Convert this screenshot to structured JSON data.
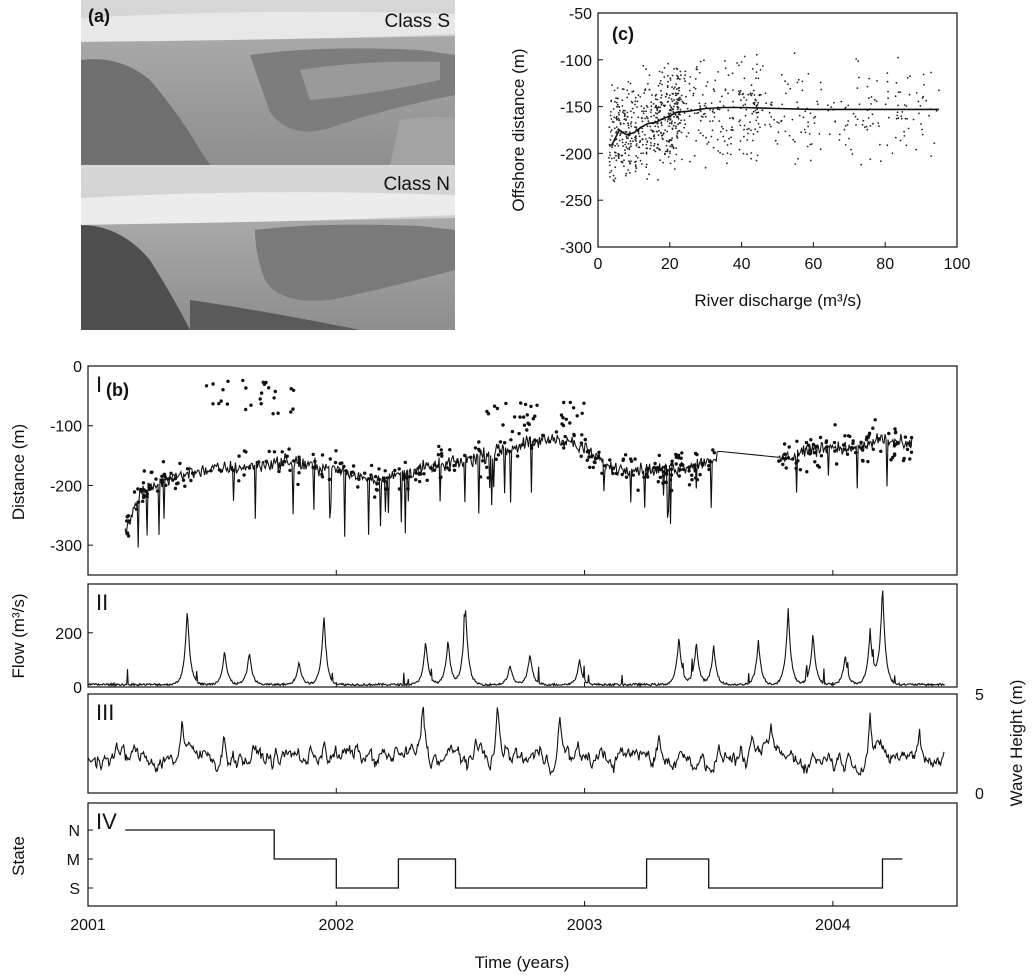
{
  "panel_a": {
    "label": "(a)",
    "photos": [
      {
        "class_label": "Class S"
      },
      {
        "class_label": "Class N"
      }
    ]
  },
  "chart_data": [
    {
      "id": "c",
      "type": "scatter",
      "panel_label": "(c)",
      "xlabel": "River discharge (m³/s)",
      "ylabel": "Offshore distance (m)",
      "xlim": [
        0,
        100
      ],
      "ylim": [
        -300,
        -50
      ],
      "xticks": [
        0,
        20,
        40,
        60,
        80,
        100
      ],
      "yticks": [
        -50,
        -100,
        -150,
        -200,
        -250,
        -300
      ],
      "trend_line": {
        "x": [
          4,
          5,
          6,
          7,
          8,
          10,
          12,
          14,
          16,
          18,
          20,
          22,
          25,
          30,
          35,
          40,
          50,
          60,
          70,
          80,
          90,
          95
        ],
        "y": [
          -190,
          -182,
          -175,
          -178,
          -180,
          -178,
          -172,
          -168,
          -167,
          -163,
          -160,
          -156,
          -155,
          -152,
          -151,
          -151,
          -152,
          -153,
          -153,
          -153,
          -153,
          -153
        ]
      }
    },
    {
      "id": "b",
      "type": "line",
      "panel_label": "(b)",
      "xlabel": "Time (years)",
      "xlim": [
        2001,
        2004.5
      ],
      "xticks": [
        2001,
        2002,
        2003,
        2004
      ],
      "panels": [
        {
          "label": "I",
          "ylabel": "Distance (m)",
          "ylim": [
            -350,
            0
          ],
          "yticks": [
            0,
            -100,
            -200,
            -300
          ],
          "anchor_x": [
            2001.15,
            2001.2,
            2001.3,
            2001.45,
            2001.6,
            2001.7,
            2001.8,
            2001.95,
            2002.1,
            2002.2,
            2002.3,
            2002.45,
            2002.6,
            2002.75,
            2002.9,
            2003.0,
            2003.1,
            2003.3,
            2003.45,
            2003.55,
            2003.8,
            2003.9,
            2004.0,
            2004.1,
            2004.2,
            2004.3
          ],
          "anchor_y": [
            -280,
            -220,
            -190,
            -175,
            -170,
            -165,
            -160,
            -170,
            -185,
            -190,
            -175,
            -165,
            -150,
            -130,
            -120,
            -140,
            -170,
            -175,
            -165,
            -150,
            -155,
            -140,
            -135,
            -140,
            -120,
            -135
          ]
        },
        {
          "label": "II",
          "ylabel": "Flow (m³/s)",
          "ylim": [
            0,
            380
          ],
          "yticks": [
            0,
            200
          ],
          "peaks": [
            {
              "x": 2001.4,
              "y": 285
            },
            {
              "x": 2001.55,
              "y": 130
            },
            {
              "x": 2001.65,
              "y": 125
            },
            {
              "x": 2001.85,
              "y": 90
            },
            {
              "x": 2001.95,
              "y": 265
            },
            {
              "x": 2002.36,
              "y": 165
            },
            {
              "x": 2002.45,
              "y": 170
            },
            {
              "x": 2002.52,
              "y": 300
            },
            {
              "x": 2002.7,
              "y": 75
            },
            {
              "x": 2002.78,
              "y": 120
            },
            {
              "x": 2002.98,
              "y": 95
            },
            {
              "x": 2003.38,
              "y": 180
            },
            {
              "x": 2003.45,
              "y": 160
            },
            {
              "x": 2003.52,
              "y": 145
            },
            {
              "x": 2003.7,
              "y": 165
            },
            {
              "x": 2003.82,
              "y": 285
            },
            {
              "x": 2003.92,
              "y": 195
            },
            {
              "x": 2004.05,
              "y": 110
            },
            {
              "x": 2004.15,
              "y": 200
            },
            {
              "x": 2004.2,
              "y": 370
            }
          ]
        },
        {
          "label": "III",
          "ylabel": "Wave Height (m)",
          "ylabel_side": "right",
          "ylim": [
            0,
            5
          ],
          "yticks": [
            0,
            5
          ],
          "peaks": [
            {
              "x": 2001.38,
              "y": 3.9
            },
            {
              "x": 2001.55,
              "y": 3.2
            },
            {
              "x": 2001.95,
              "y": 3.3
            },
            {
              "x": 2002.35,
              "y": 5.0
            },
            {
              "x": 2002.65,
              "y": 4.6
            },
            {
              "x": 2002.9,
              "y": 4.1
            },
            {
              "x": 2003.3,
              "y": 3.0
            },
            {
              "x": 2003.75,
              "y": 3.6
            },
            {
              "x": 2004.15,
              "y": 4.4
            },
            {
              "x": 2004.35,
              "y": 3.6
            }
          ]
        },
        {
          "label": "IV",
          "ylabel": "State",
          "categories": [
            "N",
            "M",
            "S"
          ],
          "steps": [
            {
              "x0": 2001.15,
              "x1": 2001.75,
              "state": "N"
            },
            {
              "x0": 2001.75,
              "x1": 2002.0,
              "state": "M"
            },
            {
              "x0": 2002.0,
              "x1": 2002.25,
              "state": "S"
            },
            {
              "x0": 2002.25,
              "x1": 2002.48,
              "state": "M"
            },
            {
              "x0": 2002.48,
              "x1": 2003.25,
              "state": "S"
            },
            {
              "x0": 2003.25,
              "x1": 2003.5,
              "state": "M"
            },
            {
              "x0": 2003.5,
              "x1": 2004.2,
              "state": "S"
            },
            {
              "x0": 2004.2,
              "x1": 2004.28,
              "state": "M"
            }
          ]
        }
      ]
    }
  ]
}
